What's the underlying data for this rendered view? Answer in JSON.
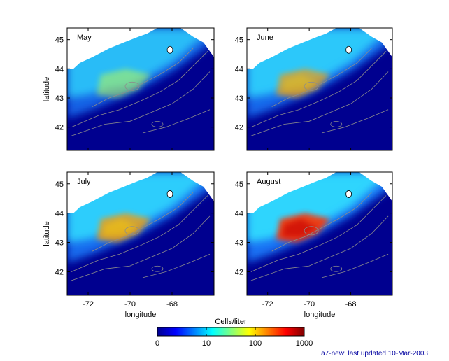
{
  "chart_data": {
    "type": "heatmap",
    "layout": "2x2 small multiples, shared colorbar",
    "panels": [
      {
        "title": "May",
        "intensity": 0.55
      },
      {
        "title": "June",
        "intensity": 0.75
      },
      {
        "title": "July",
        "intensity": 0.85
      },
      {
        "title": "August",
        "intensity": 1.0
      }
    ],
    "xlabel": "longitude",
    "ylabel": "latitude",
    "xlim": [
      -73.0,
      -66.0
    ],
    "ylim": [
      41.2,
      45.4
    ],
    "xticks": [
      -72,
      -70,
      -68
    ],
    "xtick_labels": [
      "-72",
      "-70",
      "-68"
    ],
    "yticks": [
      42,
      43,
      44,
      45
    ],
    "ytick_labels": [
      "42",
      "43",
      "44",
      "45"
    ],
    "colorbar": {
      "title": "Cells/liter",
      "scale": "log",
      "ticks": [
        0,
        10,
        100,
        1000
      ],
      "tick_labels": [
        "0",
        "10",
        "100",
        "1000"
      ],
      "colormap": "jet",
      "placement": "bottom-center"
    },
    "colors": {
      "land": "#ffffff",
      "deep": "#00008f",
      "contour": "#8c8c8c"
    },
    "footnote": "a7-new: last updated 10-Mar-2003"
  }
}
